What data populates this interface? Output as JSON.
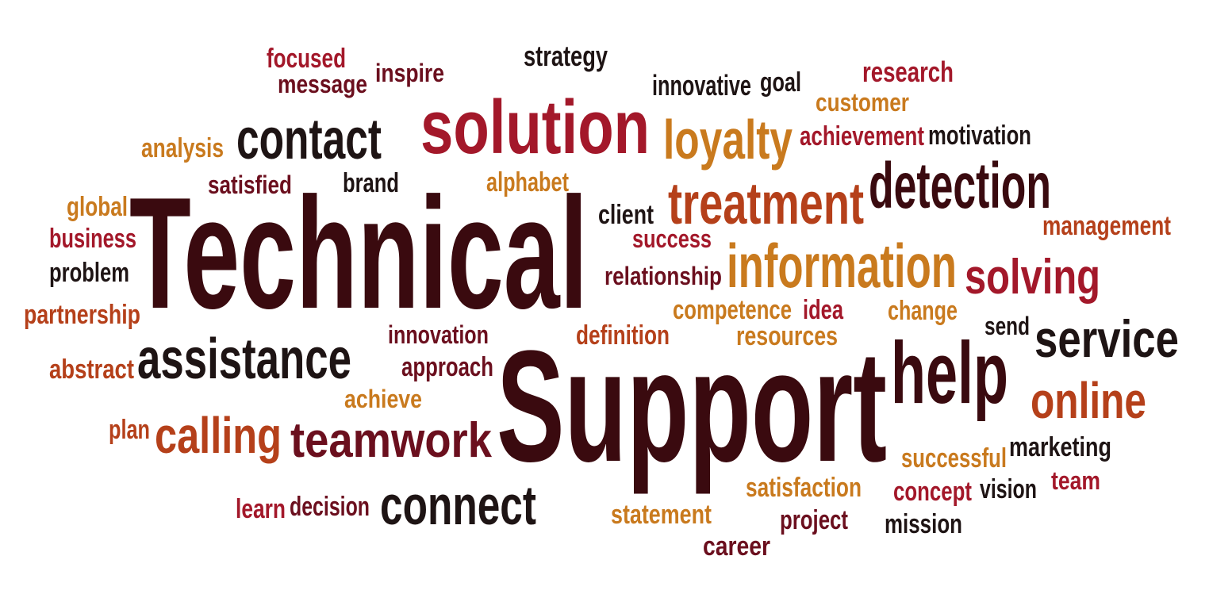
{
  "palette": {
    "dark": "#3a0a0f",
    "maroon": "#6b0f1e",
    "crimson": "#a3182a",
    "rust": "#b5401a",
    "orange": "#c97a1e",
    "black": "#1e1414"
  },
  "words": [
    {
      "text": "focused",
      "color": "crimson"
    },
    {
      "text": "message",
      "color": "maroon"
    },
    {
      "text": "inspire",
      "color": "maroon"
    },
    {
      "text": "strategy",
      "color": "black"
    },
    {
      "text": "innovative",
      "color": "black"
    },
    {
      "text": "goal",
      "color": "black"
    },
    {
      "text": "research",
      "color": "crimson"
    },
    {
      "text": "customer",
      "color": "orange"
    },
    {
      "text": "solution",
      "color": "crimson"
    },
    {
      "text": "contact",
      "color": "black"
    },
    {
      "text": "analysis",
      "color": "orange"
    },
    {
      "text": "loyalty",
      "color": "orange"
    },
    {
      "text": "achievement",
      "color": "crimson"
    },
    {
      "text": "motivation",
      "color": "black"
    },
    {
      "text": "satisfied",
      "color": "maroon"
    },
    {
      "text": "brand",
      "color": "black"
    },
    {
      "text": "alphabet",
      "color": "orange"
    },
    {
      "text": "detection",
      "color": "dark"
    },
    {
      "text": "global",
      "color": "orange"
    },
    {
      "text": "Technical",
      "color": "dark"
    },
    {
      "text": "treatment",
      "color": "rust"
    },
    {
      "text": "client",
      "color": "black"
    },
    {
      "text": "management",
      "color": "rust"
    },
    {
      "text": "business",
      "color": "crimson"
    },
    {
      "text": "success",
      "color": "crimson"
    },
    {
      "text": "problem",
      "color": "black"
    },
    {
      "text": "relationship",
      "color": "maroon"
    },
    {
      "text": "information",
      "color": "orange"
    },
    {
      "text": "solving",
      "color": "crimson"
    },
    {
      "text": "partnership",
      "color": "rust"
    },
    {
      "text": "competence",
      "color": "orange"
    },
    {
      "text": "idea",
      "color": "crimson"
    },
    {
      "text": "change",
      "color": "orange"
    },
    {
      "text": "innovation",
      "color": "maroon"
    },
    {
      "text": "definition",
      "color": "rust"
    },
    {
      "text": "resources",
      "color": "orange"
    },
    {
      "text": "send",
      "color": "black"
    },
    {
      "text": "service",
      "color": "black"
    },
    {
      "text": "assistance",
      "color": "black"
    },
    {
      "text": "abstract",
      "color": "rust"
    },
    {
      "text": "approach",
      "color": "maroon"
    },
    {
      "text": "help",
      "color": "dark"
    },
    {
      "text": "Support",
      "color": "dark"
    },
    {
      "text": "online",
      "color": "rust"
    },
    {
      "text": "achieve",
      "color": "orange"
    },
    {
      "text": "plan",
      "color": "rust"
    },
    {
      "text": "calling",
      "color": "rust"
    },
    {
      "text": "teamwork",
      "color": "maroon"
    },
    {
      "text": "successful",
      "color": "orange"
    },
    {
      "text": "marketing",
      "color": "black"
    },
    {
      "text": "satisfaction",
      "color": "orange"
    },
    {
      "text": "team",
      "color": "crimson"
    },
    {
      "text": "concept",
      "color": "crimson"
    },
    {
      "text": "vision",
      "color": "black"
    },
    {
      "text": "learn",
      "color": "crimson"
    },
    {
      "text": "decision",
      "color": "maroon"
    },
    {
      "text": "connect",
      "color": "black"
    },
    {
      "text": "statement",
      "color": "orange"
    },
    {
      "text": "project",
      "color": "maroon"
    },
    {
      "text": "mission",
      "color": "black"
    },
    {
      "text": "career",
      "color": "maroon"
    }
  ]
}
